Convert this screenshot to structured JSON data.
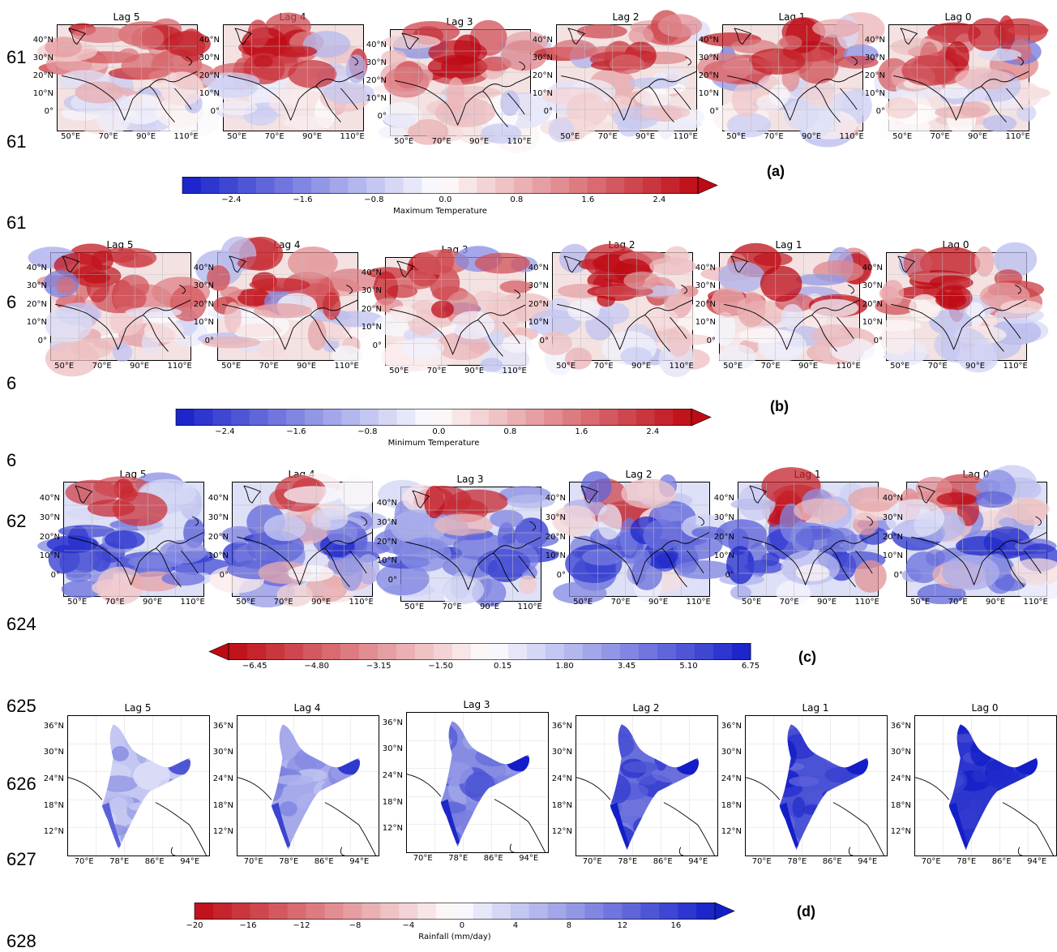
{
  "line_numbers": [
    "61",
    "61",
    "61",
    "6",
    "6",
    "6",
    "62",
    "624",
    "625",
    "626",
    "627",
    "628"
  ],
  "panels": [
    {
      "tag": "(a)",
      "map_type": "asia",
      "colors": "bwr",
      "titles": [
        "Lag 5",
        "Lag 4",
        "Lag 3",
        "Lag 2",
        "Lag 1",
        "Lag 0"
      ],
      "lat_labels": [
        "40°N",
        "30°N",
        "20°N",
        "10°N",
        "0°"
      ],
      "lon_labels": [
        "50°E",
        "70°E",
        "90°E",
        "110°E"
      ],
      "colorbar": {
        "ticks": [
          "−2.4",
          "−1.6",
          "−0.8",
          "0.0",
          "0.8",
          "1.6",
          "2.4"
        ],
        "title": "Maximum Temperature",
        "extend": "right",
        "scheme": "blue-white-red"
      }
    },
    {
      "tag": "(b)",
      "map_type": "asia",
      "colors": "bwr",
      "titles": [
        "Lag 5",
        "Lag 4",
        "Lag 3",
        "Lag 2",
        "Lag 1",
        "Lag 0"
      ],
      "lat_labels": [
        "40°N",
        "30°N",
        "20°N",
        "10°N",
        "0°"
      ],
      "lon_labels": [
        "50°E",
        "70°E",
        "90°E",
        "110°E"
      ],
      "colorbar": {
        "ticks": [
          "−2.4",
          "−1.6",
          "−0.8",
          "0.0",
          "0.8",
          "1.6",
          "2.4"
        ],
        "title": "Minimum Temperature",
        "extend": "right",
        "scheme": "blue-white-red"
      }
    },
    {
      "tag": "(c)",
      "map_type": "asia",
      "colors": "rwb",
      "titles": [
        "Lag 5",
        "Lag 4",
        "Lag 3",
        "Lag 2",
        "Lag 1",
        "Lag 0"
      ],
      "lat_labels": [
        "40°N",
        "30°N",
        "20°N",
        "10°N",
        "0°"
      ],
      "lon_labels": [
        "50°E",
        "70°E",
        "90°E",
        "110°E"
      ],
      "colorbar": {
        "ticks": [
          "−6.45",
          "−4.80",
          "−3.15",
          "−1.50",
          "0.15",
          "1.80",
          "3.45",
          "5.10",
          "6.75"
        ],
        "title": "",
        "extend": "left",
        "scheme": "red-white-blue"
      }
    },
    {
      "tag": "(d)",
      "map_type": "india",
      "colors": "rwb",
      "titles": [
        "Lag 5",
        "Lag 4",
        "Lag 3",
        "Lag 2",
        "Lag 1",
        "Lag 0"
      ],
      "lat_labels": [
        "36°N",
        "30°N",
        "24°N",
        "18°N",
        "12°N"
      ],
      "lon_labels": [
        "70°E",
        "78°E",
        "86°E",
        "94°E"
      ],
      "colorbar": {
        "ticks": [
          "−20",
          "−16",
          "−12",
          "−8",
          "−4",
          "0",
          "4",
          "8",
          "12",
          "16"
        ],
        "title": "Rainfall (mm/day)",
        "extend": "right",
        "scheme": "red-white-blue"
      }
    }
  ]
}
